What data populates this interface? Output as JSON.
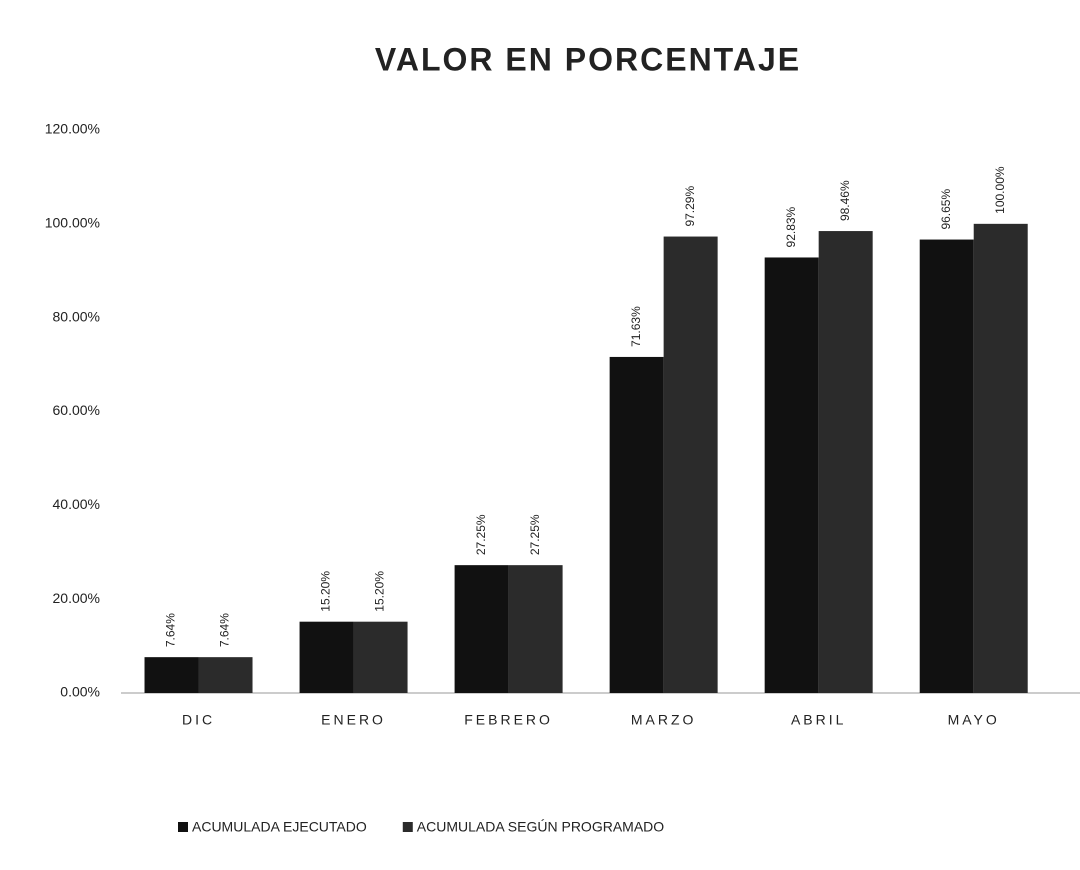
{
  "chart_data": {
    "type": "bar",
    "title": "VALOR EN PORCENTAJE",
    "categories": [
      "DIC",
      "ENERO",
      "FEBRERO",
      "MARZO",
      "ABRIL",
      "MAYO"
    ],
    "series": [
      {
        "name": "ACUMULADA EJECUTADO",
        "color": "#111111",
        "values": [
          7.64,
          15.2,
          27.25,
          71.63,
          92.83,
          96.65
        ],
        "value_labels": [
          "7.64%",
          "15.20%",
          "27.25%",
          "71.63%",
          "92.83%",
          "96.65%"
        ]
      },
      {
        "name": "ACUMULADA SEGÚN PROGRAMADO",
        "color": "#2b2b2b",
        "values": [
          7.64,
          15.2,
          27.25,
          97.29,
          98.46,
          100
        ],
        "value_labels": [
          "7.64%",
          "15.20%",
          "27.25%",
          "97.29%",
          "98.46%",
          "100.00%"
        ]
      }
    ],
    "ylim": [
      0,
      120
    ],
    "yticks": [
      {
        "value": 0,
        "label": "0.00%"
      },
      {
        "value": 20,
        "label": "20.00%"
      },
      {
        "value": 40,
        "label": "40.00%"
      },
      {
        "value": 60,
        "label": "60.00%"
      },
      {
        "value": 80,
        "label": "80.00%"
      },
      {
        "value": 100,
        "label": "100.00%"
      },
      {
        "value": 120,
        "label": "120.00%"
      }
    ],
    "grid": false,
    "legend": "bottom"
  }
}
